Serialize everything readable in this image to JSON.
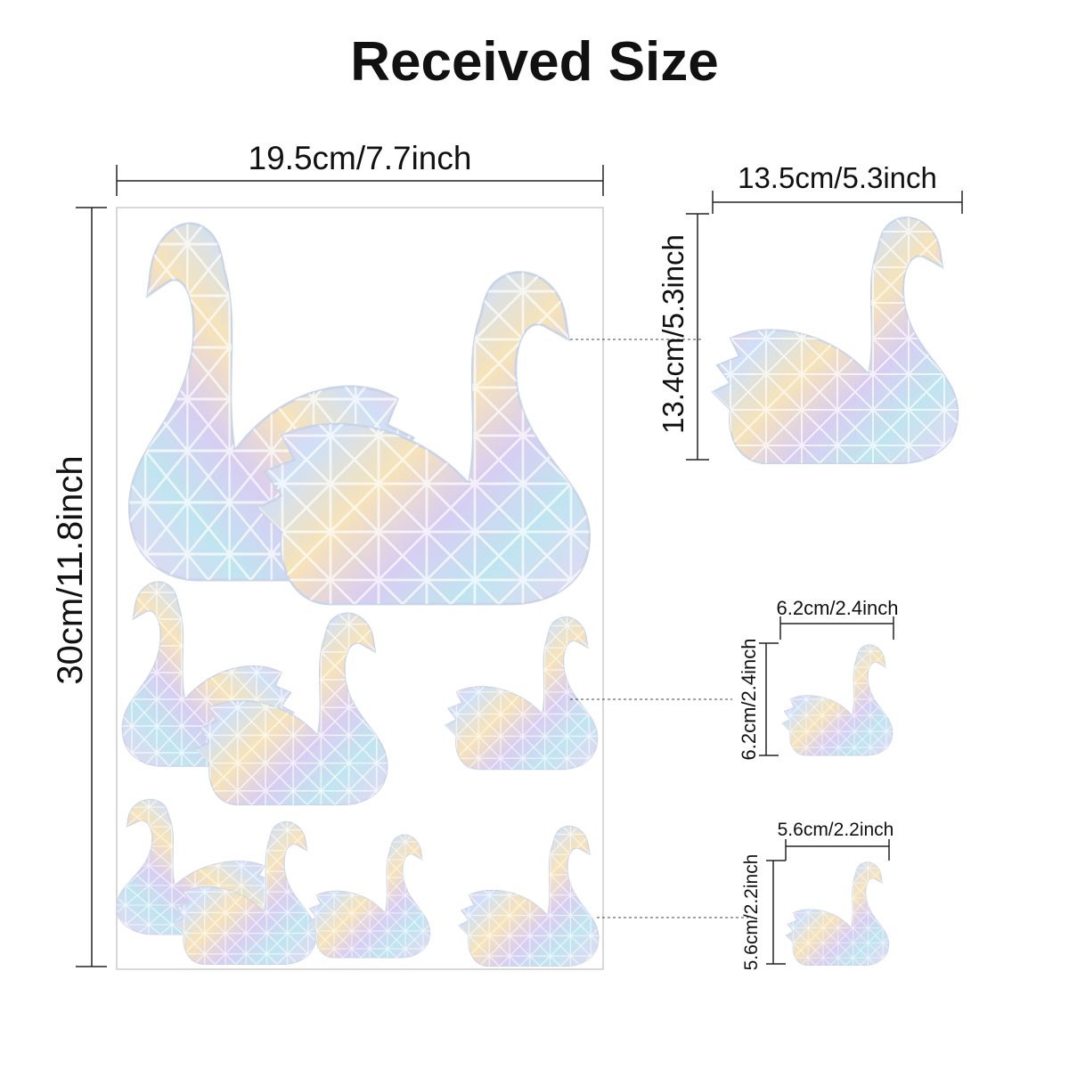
{
  "header": {
    "title": "Received Size"
  },
  "sheet": {
    "width": "19.5cm/7.7inch",
    "height": "30cm/11.8inch"
  },
  "stickers": [
    {
      "width": "13.5cm/5.3inch",
      "height": "13.4cm/5.3inch"
    },
    {
      "width": "6.2cm/2.4inch",
      "height": "6.2cm/2.4inch"
    },
    {
      "width": "5.6cm/2.2inch",
      "height": "5.6cm/2.2inch"
    }
  ]
}
